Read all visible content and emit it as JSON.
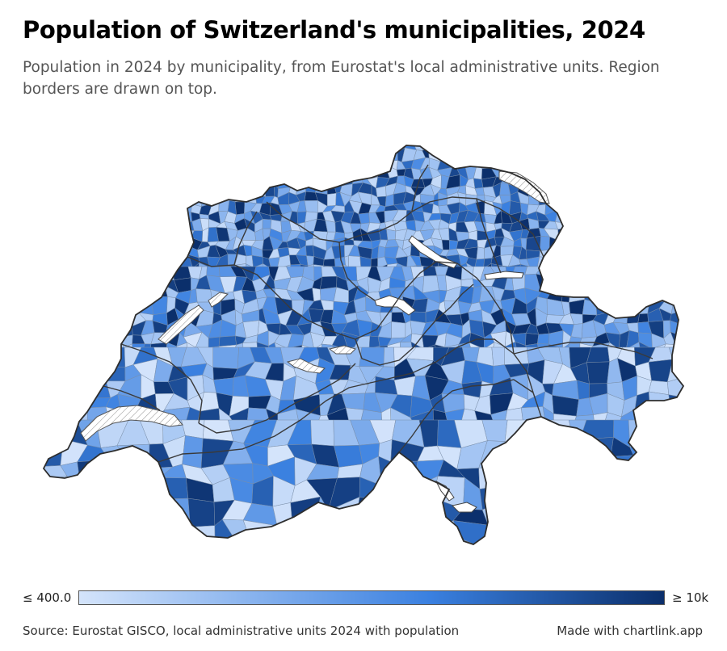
{
  "title": "Population of Switzerland's municipalities, 2024",
  "subtitle": "Population in 2024 by municipality, from Eurostat's local administrative units. Region borders are drawn on top.",
  "legend": {
    "min_label": "≤ 400.0",
    "max_label": "≥ 10k",
    "color_low": "#d4e4fb",
    "color_mid": "#3a80e0",
    "color_high": "#0b2f6b"
  },
  "colors": {
    "region_border": "#3a3a3a",
    "municipality_border": "#7a8ea8",
    "lake_fill": "#ffffff",
    "lake_hatch": "#888888"
  },
  "footer": {
    "source": "Source: Eurostat GISCO, local administrative units 2024 with population",
    "credit": "Made with chartlink.app"
  }
}
